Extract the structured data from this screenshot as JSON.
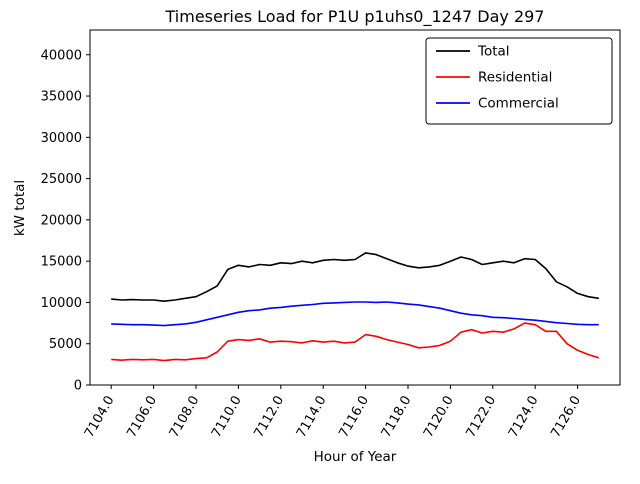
{
  "chart_data": {
    "type": "line",
    "title": "Timeseries Load for P1U p1uhs0_1247  Day 297",
    "xlabel": "Hour of Year",
    "ylabel": "kW total",
    "grid": false,
    "background": "#ffffff",
    "xlim": [
      7103.0,
      7128.0
    ],
    "ylim": [
      0,
      43000
    ],
    "xticks": [
      7104,
      7106,
      7108,
      7110,
      7112,
      7114,
      7116,
      7118,
      7120,
      7122,
      7124,
      7126
    ],
    "xtick_labels": [
      "7104.0",
      "7106.0",
      "7108.0",
      "7110.0",
      "7112.0",
      "7114.0",
      "7116.0",
      "7118.0",
      "7120.0",
      "7122.0",
      "7124.0",
      "7126.0"
    ],
    "yticks": [
      0,
      5000,
      10000,
      15000,
      20000,
      25000,
      30000,
      35000,
      40000
    ],
    "ytick_labels": [
      "0",
      "5000",
      "10000",
      "15000",
      "20000",
      "25000",
      "30000",
      "35000",
      "40000"
    ],
    "legend": {
      "position": "upper right",
      "entries": [
        "Total",
        "Residential",
        "Commercial"
      ]
    },
    "x": [
      7104.0,
      7104.5,
      7105.0,
      7105.5,
      7106.0,
      7106.5,
      7107.0,
      7107.5,
      7108.0,
      7108.5,
      7109.0,
      7109.5,
      7110.0,
      7110.5,
      7111.0,
      7111.5,
      7112.0,
      7112.5,
      7113.0,
      7113.5,
      7114.0,
      7114.5,
      7115.0,
      7115.5,
      7116.0,
      7116.5,
      7117.0,
      7117.5,
      7118.0,
      7118.5,
      7119.0,
      7119.5,
      7120.0,
      7120.5,
      7121.0,
      7121.5,
      7122.0,
      7122.5,
      7123.0,
      7123.5,
      7124.0,
      7124.5,
      7125.0,
      7125.5,
      7126.0,
      7126.5,
      7127.0
    ],
    "series": [
      {
        "name": "Total",
        "color": "#000000",
        "values": [
          10400,
          10300,
          10350,
          10300,
          10300,
          10150,
          10300,
          10500,
          10700,
          11300,
          12000,
          14000,
          14500,
          14300,
          14600,
          14500,
          14800,
          14700,
          15000,
          14800,
          15100,
          15200,
          15100,
          15200,
          16000,
          15800,
          15300,
          14800,
          14400,
          14200,
          14300,
          14500,
          15000,
          15500,
          15200,
          14600,
          14800,
          15000,
          14800,
          15300,
          15200,
          14100,
          12500,
          11900,
          11100,
          10700,
          10500
        ]
      },
      {
        "name": "Residential",
        "color": "#ff0000",
        "values": [
          3100,
          3000,
          3100,
          3050,
          3100,
          2950,
          3100,
          3050,
          3200,
          3300,
          4000,
          5300,
          5500,
          5400,
          5600,
          5200,
          5300,
          5250,
          5100,
          5350,
          5200,
          5300,
          5100,
          5200,
          6100,
          5900,
          5500,
          5200,
          4900,
          4500,
          4600,
          4800,
          5300,
          6400,
          6700,
          6300,
          6500,
          6400,
          6800,
          7500,
          7300,
          6500,
          6500,
          5000,
          4200,
          3700,
          3300
        ]
      },
      {
        "name": "Commercial",
        "color": "#0000ff",
        "values": [
          7400,
          7350,
          7300,
          7300,
          7250,
          7200,
          7300,
          7400,
          7600,
          7900,
          8200,
          8500,
          8800,
          9000,
          9100,
          9300,
          9400,
          9550,
          9650,
          9750,
          9900,
          9950,
          10000,
          10050,
          10050,
          10000,
          10050,
          9950,
          9800,
          9700,
          9500,
          9300,
          9000,
          8700,
          8500,
          8400,
          8200,
          8150,
          8050,
          7950,
          7850,
          7700,
          7550,
          7450,
          7350,
          7300,
          7300
        ]
      }
    ]
  }
}
